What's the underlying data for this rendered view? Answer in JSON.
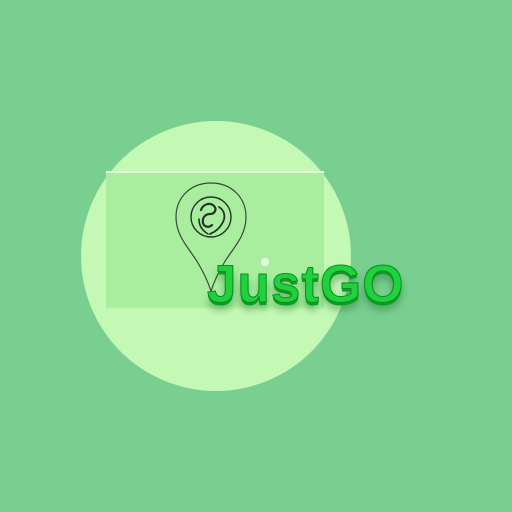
{
  "logo": {
    "brand_name": "JustGO",
    "icon": "map-pin-globe-icon",
    "background_color": "#79cf8f",
    "circle_color": "#c3f9b5",
    "map_color": "#a9ee9f",
    "text_color": "#1ed13d"
  }
}
